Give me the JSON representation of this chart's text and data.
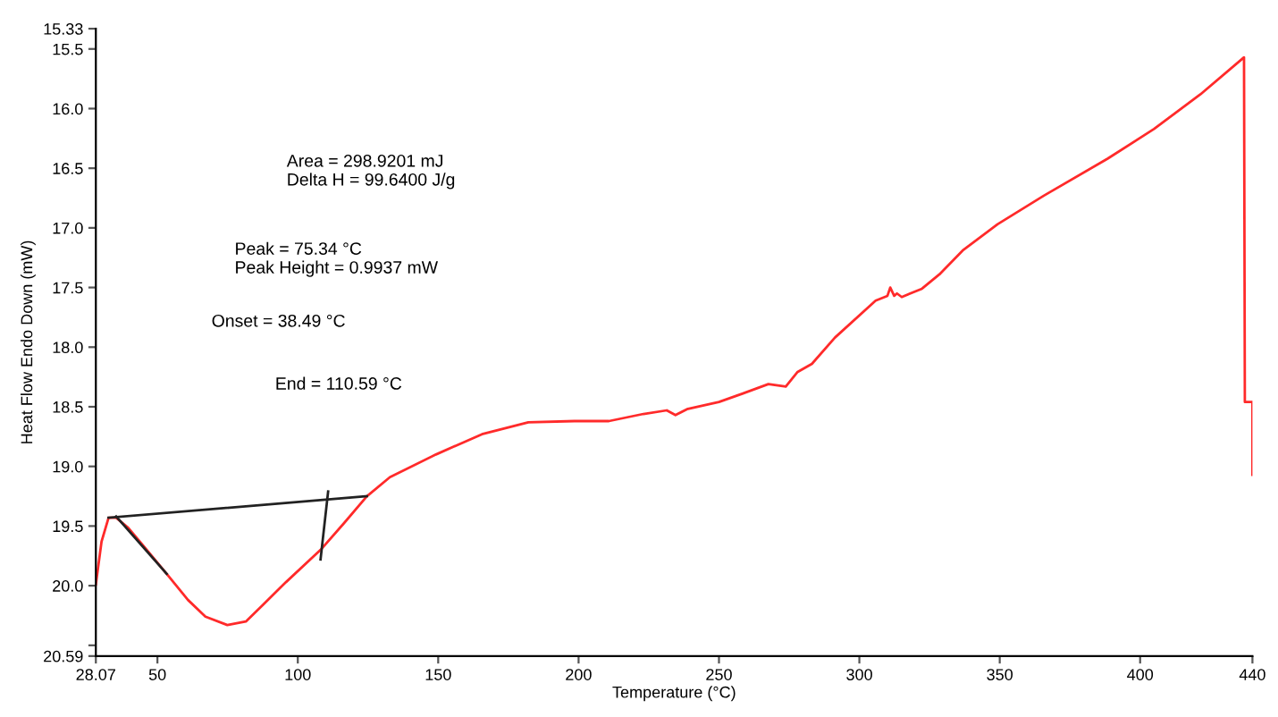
{
  "chart_data": {
    "type": "line",
    "xlabel": "Temperature (°C)",
    "ylabel": "Heat Flow Endo Down (mW)",
    "annotations": [
      "Area = 298.9201 mJ\nDelta H = 99.6400 J/g",
      "Peak = 75.34 °C\nPeak Height = 0.9937 mW",
      "Onset = 38.49 °C",
      "End = 110.59 °C"
    ],
    "series": [
      {
        "color": "#ff2a2a",
        "x": [
          28.07,
          30.1,
          32.6,
          35.3,
          39.4,
          45.5,
          53.3,
          60.9,
          67.1,
          74.9,
          81.5,
          87.6,
          95.8,
          108.1,
          116.3,
          124.6,
          132.8,
          149.2,
          165.6,
          182.1,
          198.5,
          210.8,
          223.1,
          231.4,
          234.5,
          238.6,
          250,
          258.3,
          267.6,
          273.8,
          277.9,
          283.1,
          291.3,
          305.8,
          310,
          311,
          312.4,
          313.4,
          315.1,
          322.3,
          328.5,
          336.8,
          349.2,
          365.7,
          388.4,
          405,
          421.5,
          437,
          437.3,
          440,
          440
        ],
        "values": [
          19.99,
          19.63,
          19.43,
          19.43,
          19.51,
          19.68,
          19.9,
          20.12,
          20.26,
          20.33,
          20.3,
          20.16,
          19.97,
          19.7,
          19.48,
          19.25,
          19.09,
          18.9,
          18.73,
          18.63,
          18.62,
          18.62,
          18.56,
          18.53,
          18.57,
          18.52,
          18.46,
          18.39,
          18.31,
          18.33,
          18.21,
          18.14,
          17.92,
          17.61,
          17.57,
          17.5,
          17.57,
          17.55,
          17.58,
          17.51,
          17.39,
          17.19,
          16.97,
          16.73,
          16.42,
          16.17,
          15.88,
          15.57,
          18.46,
          18.46,
          19.07
        ]
      },
      {
        "color": "#222222",
        "x": [
          32.6,
          124.6
        ],
        "values": [
          19.43,
          19.25
        ]
      },
      {
        "color": "#222222",
        "x": [
          35.3,
          53.3
        ],
        "values": [
          19.42,
          19.9
        ]
      },
      {
        "color": "#222222",
        "x": [
          108.1,
          110.8
        ],
        "values": [
          19.78,
          19.21
        ]
      }
    ],
    "xlim": [
      28.07,
      440
    ],
    "xticks": [
      {
        "value": 28.07,
        "label": "28.07"
      },
      50,
      100,
      150,
      200,
      250,
      300,
      350,
      400,
      440
    ],
    "ylim": [
      20.59,
      15.33
    ],
    "yticks": [
      {
        "value": 15.33,
        "label": "15.33"
      },
      15.5,
      {
        "value": 16,
        "label": "16.0"
      },
      16.5,
      {
        "value": 17,
        "label": "17.0"
      },
      17.5,
      {
        "value": 18,
        "label": "18.0"
      },
      18.5,
      {
        "value": 19,
        "label": "19.0"
      },
      19.5,
      {
        "value": 20,
        "label": "20.0"
      },
      {
        "value": 20.5,
        "label": null
      },
      {
        "value": 20.59,
        "label": "20.59"
      }
    ],
    "grid": false,
    "legend": false
  }
}
